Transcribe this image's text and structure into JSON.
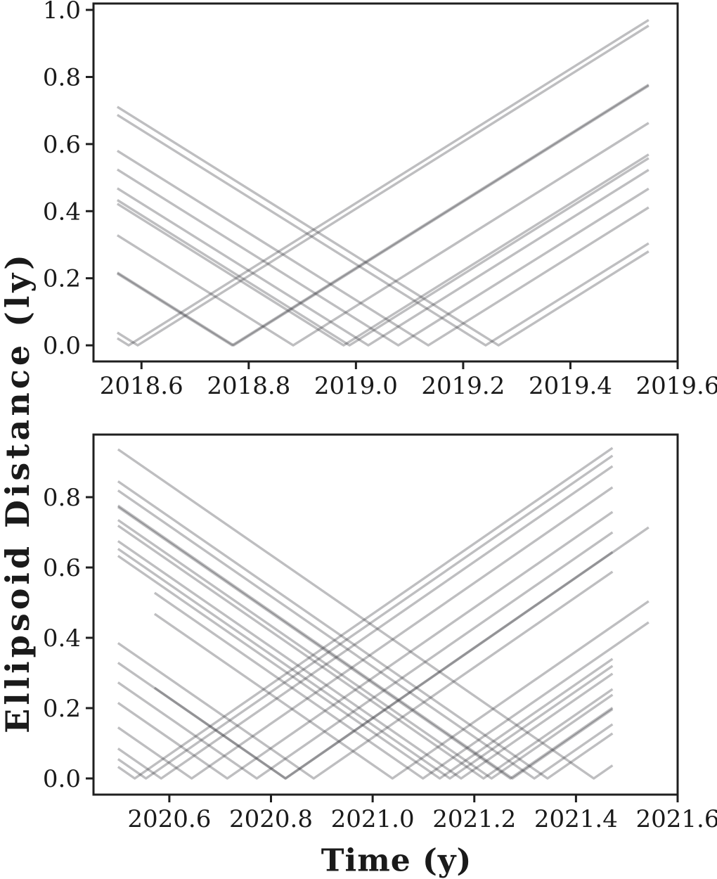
{
  "labels": {
    "ylabel": "Ellipsoid Distance (ly)",
    "xlabel": "Time (y)"
  },
  "style": {
    "background": "#ffffff",
    "text_color": "#1a1a1a",
    "spine_color": "#1f1f1f",
    "line_color": "#36363b",
    "line_opacity": 0.32,
    "line_width": 3.4,
    "spine_width": 3,
    "tick_length": 11,
    "tick_width": 3,
    "tick_font_size": 34
  },
  "chart_data": [
    {
      "type": "line",
      "panel": "top",
      "title": "",
      "xlabel": "Time (y)",
      "ylabel": "Ellipsoid Distance (ly)",
      "model": "y = |t - t0|, slope 1 ly per yr, V-shaped flyby distance curves",
      "grid": false,
      "legend": "none",
      "xlim": [
        2018.5105,
        2019.6
      ],
      "ylim": [
        -0.048,
        1.019
      ],
      "x_ticks": [
        2018.6,
        2018.8,
        2019.0,
        2019.2,
        2019.4,
        2019.6
      ],
      "x_tick_labels": [
        "2018.6",
        "2018.8",
        "2019.0",
        "2019.2",
        "2019.4",
        "2019.6"
      ],
      "y_ticks": [
        0.0,
        0.2,
        0.4,
        0.6,
        0.8,
        1.0
      ],
      "y_tick_labels": [
        "0.0",
        "0.2",
        "0.4",
        "0.6",
        "0.8",
        "1.0"
      ],
      "series": [
        {
          "t0": 2018.576,
          "t_start": 2018.555,
          "t_end": 2019.546
        },
        {
          "t0": 2018.593,
          "t_start": 2018.555,
          "t_end": 2019.546
        },
        {
          "t0": 2018.769,
          "t_start": 2018.555,
          "t_end": 2019.546
        },
        {
          "t0": 2018.772,
          "t_start": 2018.555,
          "t_end": 2019.546
        },
        {
          "t0": 2018.883,
          "t_start": 2018.555,
          "t_end": 2019.546
        },
        {
          "t0": 2018.977,
          "t_start": 2018.555,
          "t_end": 2019.546
        },
        {
          "t0": 2018.988,
          "t_start": 2018.555,
          "t_end": 2019.546
        },
        {
          "t0": 2019.023,
          "t_start": 2018.555,
          "t_end": 2019.546
        },
        {
          "t0": 2019.079,
          "t_start": 2018.555,
          "t_end": 2019.546
        },
        {
          "t0": 2019.135,
          "t_start": 2018.555,
          "t_end": 2019.546
        },
        {
          "t0": 2019.242,
          "t_start": 2018.555,
          "t_end": 2019.546
        },
        {
          "t0": 2019.266,
          "t_start": 2018.555,
          "t_end": 2019.546
        }
      ]
    },
    {
      "type": "line",
      "panel": "bottom",
      "title": "",
      "xlabel": "Time (y)",
      "ylabel": "Ellipsoid Distance (ly)",
      "model": "y = |t - t0|, slope 1 ly per yr, V-shaped flyby distance curves",
      "grid": false,
      "legend": "none",
      "xlim": [
        2020.4508,
        2021.6
      ],
      "ylim": [
        -0.046,
        0.978
      ],
      "x_ticks": [
        2020.6,
        2020.8,
        2021.0,
        2021.2,
        2021.4,
        2021.6
      ],
      "x_tick_labels": [
        "2020.6",
        "2020.8",
        "2021.0",
        "2021.2",
        "2021.4",
        "2021.6"
      ],
      "y_ticks": [
        0.0,
        0.2,
        0.4,
        0.6,
        0.8
      ],
      "y_tick_labels": [
        "0.0",
        "0.2",
        "0.4",
        "0.6",
        "0.8"
      ],
      "series": [
        {
          "t0": 2020.532,
          "t_start": 2020.499,
          "t_end": 2021.472
        },
        {
          "t0": 2020.554,
          "t_start": 2020.499,
          "t_end": 2021.472
        },
        {
          "t0": 2020.584,
          "t_start": 2020.499,
          "t_end": 2021.472
        },
        {
          "t0": 2020.644,
          "t_start": 2020.499,
          "t_end": 2021.472
        },
        {
          "t0": 2020.714,
          "t_start": 2020.499,
          "t_end": 2021.472
        },
        {
          "t0": 2020.772,
          "t_start": 2020.499,
          "t_end": 2021.472
        },
        {
          "t0": 2020.828,
          "t_start": 2020.499,
          "t_end": 2021.472
        },
        {
          "t0": 2020.884,
          "t_start": 2020.499,
          "t_end": 2021.472
        },
        {
          "t0": 2021.132,
          "t_start": 2020.499,
          "t_end": 2021.472
        },
        {
          "t0": 2021.152,
          "t_start": 2020.499,
          "t_end": 2021.472
        },
        {
          "t0": 2021.174,
          "t_start": 2020.499,
          "t_end": 2021.472
        },
        {
          "t0": 2021.218,
          "t_start": 2020.499,
          "t_end": 2021.472
        },
        {
          "t0": 2021.234,
          "t_start": 2020.499,
          "t_end": 2021.472
        },
        {
          "t0": 2021.271,
          "t_start": 2020.499,
          "t_end": 2021.472
        },
        {
          "t0": 2021.275,
          "t_start": 2020.499,
          "t_end": 2021.472
        },
        {
          "t0": 2021.318,
          "t_start": 2020.499,
          "t_end": 2021.472
        },
        {
          "t0": 2021.344,
          "t_start": 2020.499,
          "t_end": 2021.472
        },
        {
          "t0": 2021.435,
          "t_start": 2020.499,
          "t_end": 2021.472
        },
        {
          "t0": 2020.829,
          "t_start": 2020.571,
          "t_end": 2021.543
        },
        {
          "t0": 2021.039,
          "t_start": 2020.571,
          "t_end": 2021.543
        },
        {
          "t0": 2021.099,
          "t_start": 2020.571,
          "t_end": 2021.543
        }
      ]
    }
  ]
}
